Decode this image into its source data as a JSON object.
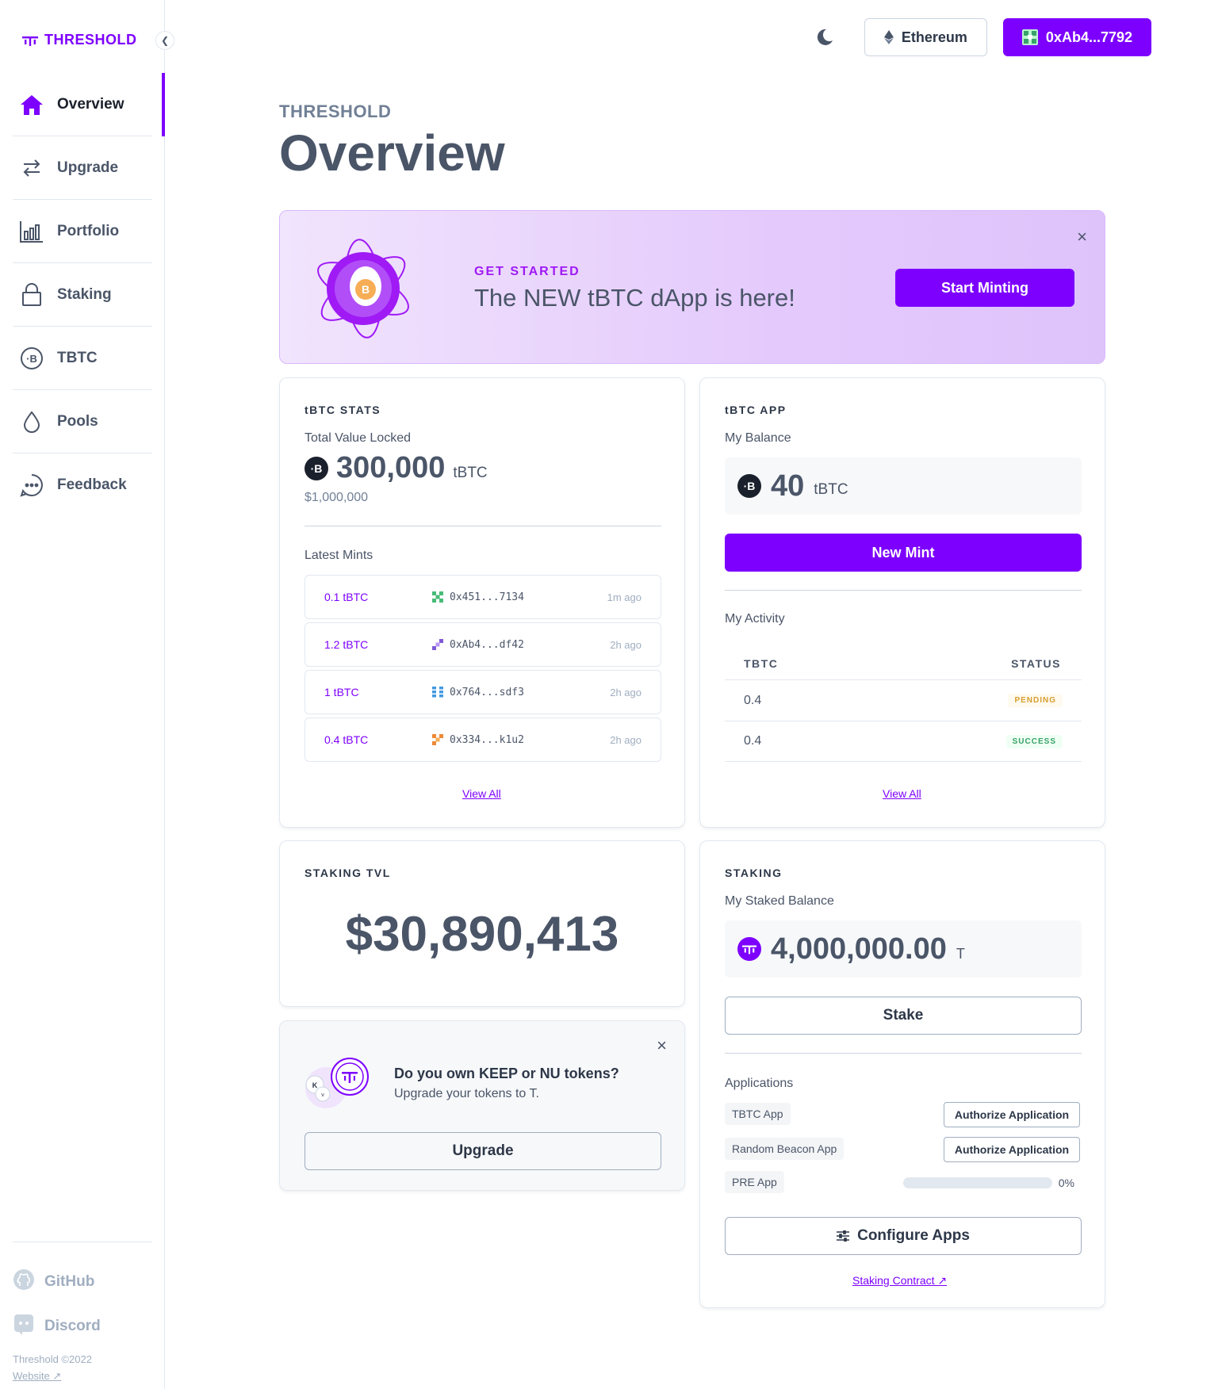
{
  "sidebar": {
    "logo_text": "THRESHOLD",
    "items": [
      {
        "label": "Overview",
        "icon": "home-icon"
      },
      {
        "label": "Upgrade",
        "icon": "swap-icon"
      },
      {
        "label": "Portfolio",
        "icon": "bar-chart-icon"
      },
      {
        "label": "Staking",
        "icon": "lock-icon"
      },
      {
        "label": "TBTC",
        "icon": "tbtc-icon"
      },
      {
        "label": "Pools",
        "icon": "droplet-icon"
      },
      {
        "label": "Feedback",
        "icon": "chat-icon"
      }
    ],
    "github": "GitHub",
    "discord": "Discord",
    "copyright": "Threshold ©2022",
    "website": "Website ↗"
  },
  "header": {
    "network": "Ethereum",
    "wallet": "0xAb4...7792"
  },
  "page": {
    "subtitle": "THRESHOLD",
    "title": "Overview"
  },
  "banner": {
    "eyebrow": "GET STARTED",
    "title": "The NEW tBTC dApp is here!",
    "button": "Start Minting",
    "close": "×"
  },
  "tbtc_stats": {
    "label": "tBTC STATS",
    "tvl_label": "Total Value Locked",
    "tvl_value": "300,000",
    "tvl_unit": "tBTC",
    "tvl_usd": "$1,000,000",
    "latest_label": "Latest Mints",
    "mints": [
      {
        "amount": "0.1 tBTC",
        "address": "0x451...7134",
        "time": "1m ago",
        "color": "#48bb78"
      },
      {
        "amount": "1.2 tBTC",
        "address": "0xAb4...df42",
        "time": "2h ago",
        "color": "#805ad5"
      },
      {
        "amount": "1 tBTC",
        "address": "0x764...sdf3",
        "time": "2h ago",
        "color": "#4299e1"
      },
      {
        "amount": "0.4 tBTC",
        "address": "0x334...k1u2",
        "time": "2h ago",
        "color": "#ed8936"
      }
    ],
    "view_all": "View All"
  },
  "tbtc_app": {
    "label": "tBTC APP",
    "balance_label": "My Balance",
    "balance_value": "40",
    "balance_unit": "tBTC",
    "new_mint": "New Mint",
    "activity_label": "My Activity",
    "col_tbtc": "TBTC",
    "col_status": "STATUS",
    "rows": [
      {
        "amount": "0.4",
        "status": "PENDING",
        "status_color": "#d69e2e",
        "status_bg": "#fefcbf"
      },
      {
        "amount": "0.4",
        "status": "SUCCESS",
        "status_color": "#38a169",
        "status_bg": "#f0fff4"
      }
    ],
    "view_all": "View All"
  },
  "staking_tvl": {
    "label": "STAKING TVL",
    "value": "$30,890,413"
  },
  "upgrade_card": {
    "title": "Do you own KEEP or NU tokens?",
    "subtitle": "Upgrade your tokens to T.",
    "button": "Upgrade",
    "close": "×"
  },
  "staking": {
    "label": "STAKING",
    "balance_label": "My Staked Balance",
    "balance_value": "4,000,000.00",
    "balance_unit": "T",
    "stake_button": "Stake",
    "applications_label": "Applications",
    "apps": [
      {
        "name": "TBTC App",
        "action": "Authorize Application"
      },
      {
        "name": "Random Beacon App",
        "action": "Authorize Application"
      },
      {
        "name": "PRE App",
        "progress_label": "0%",
        "progress": 0
      }
    ],
    "configure_button": "Configure Apps",
    "contract_link": "Staking Contract ↗"
  },
  "colors": {
    "accent": "#7d00ff"
  }
}
